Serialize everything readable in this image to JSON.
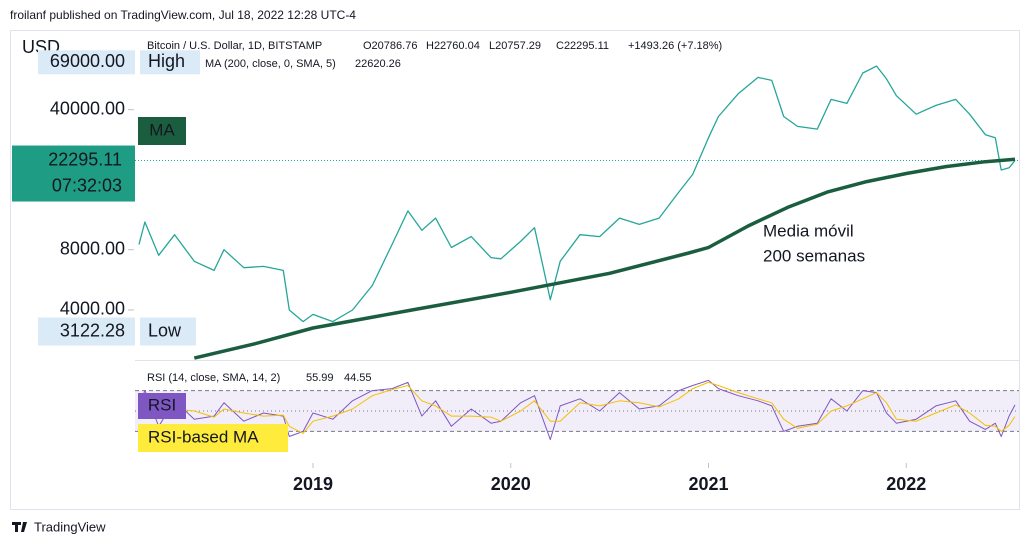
{
  "header": "froilanf published on TradingView.com, Jul 18, 2022 12:28 UTC-4",
  "footer": "TradingView",
  "chart_data": [
    {
      "type": "line",
      "currency": "USD",
      "log_scale": true,
      "ohlc": [
        "O20786.76",
        "H22760.04",
        "L20757.29",
        "C22295.11",
        "+1493.26 (+7.18%)"
      ],
      "xlim": [
        2018.1,
        2022.57
      ],
      "ylim": [
        2250,
        100000
      ],
      "yticks": [
        {
          "value": 4000,
          "label": "4000.00"
        },
        {
          "value": 8000,
          "label": "8000.00"
        },
        {
          "value": 40000,
          "label": "40000.00"
        }
      ],
      "x": [
        2018.12,
        2018.15,
        2018.22,
        2018.3,
        2018.4,
        2018.5,
        2018.55,
        2018.65,
        2018.75,
        2018.85,
        2018.88,
        2018.95,
        2019.0,
        2019.1,
        2019.2,
        2019.3,
        2019.4,
        2019.48,
        2019.55,
        2019.62,
        2019.7,
        2019.8,
        2019.9,
        2019.95,
        2020.05,
        2020.12,
        2020.2,
        2020.25,
        2020.35,
        2020.45,
        2020.55,
        2020.65,
        2020.75,
        2020.85,
        2020.92,
        2021.0,
        2021.05,
        2021.15,
        2021.25,
        2021.32,
        2021.38,
        2021.45,
        2021.55,
        2021.62,
        2021.7,
        2021.78,
        2021.85,
        2021.9,
        2021.95,
        2022.05,
        2022.15,
        2022.25,
        2022.32,
        2022.4,
        2022.45,
        2022.48,
        2022.52,
        2022.55
      ],
      "series": [
        {
          "name": "Bitcoin / U.S. Dollar, 1D, BITSTAMP",
          "color": "#26a69a",
          "values": [
            8500,
            11000,
            7500,
            9500,
            7000,
            6300,
            8000,
            6500,
            6600,
            6300,
            4000,
            3500,
            3800,
            3500,
            4000,
            5300,
            8500,
            12500,
            10000,
            11500,
            8200,
            9300,
            7300,
            7200,
            8800,
            10300,
            4500,
            7000,
            9500,
            9300,
            11500,
            10700,
            11500,
            15500,
            19000,
            29000,
            37000,
            48000,
            58000,
            56000,
            37000,
            33000,
            32000,
            45000,
            43000,
            61000,
            66000,
            57000,
            47000,
            38000,
            42000,
            45000,
            38000,
            30000,
            29000,
            20000,
            20500,
            22295.11
          ]
        },
        {
          "name": "MA (200, close, 0, SMA, 5)",
          "color": "#1b5e3f",
          "x": [
            2018.4,
            2018.7,
            2019.0,
            2019.5,
            2020.0,
            2020.5,
            2020.9,
            2021.0,
            2021.2,
            2021.4,
            2021.6,
            2021.8,
            2022.0,
            2022.2,
            2022.4,
            2022.55
          ],
          "values": [
            2300,
            2700,
            3250,
            4000,
            4900,
            6100,
            7700,
            8200,
            10500,
            13000,
            15500,
            17500,
            19200,
            20800,
            22000,
            22620.26
          ]
        }
      ],
      "high": {
        "text": "High",
        "value": 69000,
        "label": "69000.00"
      },
      "low": {
        "text": "Low",
        "value": 3122.28
      },
      "ma_badge": "MA",
      "countdown": "07:32:03",
      "annotation": [
        "Media móvil",
        "200 semanas"
      ]
    },
    {
      "type": "line",
      "legend": "RSI (14, close, SMA, 14, 2)",
      "xlim": [
        2018.1,
        2022.57
      ],
      "ylim": [
        0,
        100
      ],
      "xticks": [
        2019,
        2020,
        2021,
        2022
      ],
      "bands": [
        70,
        50,
        30
      ],
      "x": [
        2018.12,
        2018.15,
        2018.22,
        2018.3,
        2018.4,
        2018.5,
        2018.55,
        2018.65,
        2018.75,
        2018.85,
        2018.88,
        2018.95,
        2019.0,
        2019.1,
        2019.2,
        2019.3,
        2019.4,
        2019.48,
        2019.55,
        2019.62,
        2019.7,
        2019.8,
        2019.9,
        2019.95,
        2020.05,
        2020.12,
        2020.2,
        2020.25,
        2020.35,
        2020.45,
        2020.55,
        2020.65,
        2020.75,
        2020.85,
        2020.92,
        2021.0,
        2021.05,
        2021.15,
        2021.25,
        2021.32,
        2021.38,
        2021.45,
        2021.55,
        2021.62,
        2021.7,
        2021.78,
        2021.85,
        2021.9,
        2021.95,
        2022.05,
        2022.15,
        2022.25,
        2022.32,
        2022.4,
        2022.45,
        2022.48,
        2022.52,
        2022.55
      ],
      "series": [
        {
          "name": "RSI",
          "color": "#7e57c2",
          "values": [
            55,
            70,
            35,
            60,
            42,
            45,
            58,
            40,
            48,
            45,
            25,
            30,
            48,
            42,
            60,
            70,
            72,
            78,
            45,
            60,
            35,
            52,
            38,
            40,
            58,
            65,
            22,
            55,
            62,
            50,
            68,
            52,
            55,
            70,
            75,
            80,
            72,
            65,
            60,
            55,
            30,
            35,
            38,
            62,
            50,
            70,
            68,
            48,
            38,
            42,
            55,
            60,
            40,
            32,
            38,
            25,
            45,
            55.99
          ]
        },
        {
          "name": "RSI-based MA",
          "color": "#f5c000",
          "values": [
            52,
            62,
            50,
            52,
            50,
            44,
            52,
            48,
            45,
            46,
            35,
            28,
            40,
            45,
            52,
            65,
            71,
            75,
            60,
            55,
            45,
            45,
            44,
            40,
            50,
            60,
            40,
            40,
            58,
            55,
            60,
            58,
            54,
            62,
            72,
            78,
            75,
            68,
            62,
            58,
            42,
            33,
            37,
            50,
            55,
            62,
            68,
            58,
            42,
            40,
            48,
            56,
            48,
            36,
            35,
            30,
            36,
            44.55
          ]
        }
      ]
    }
  ]
}
